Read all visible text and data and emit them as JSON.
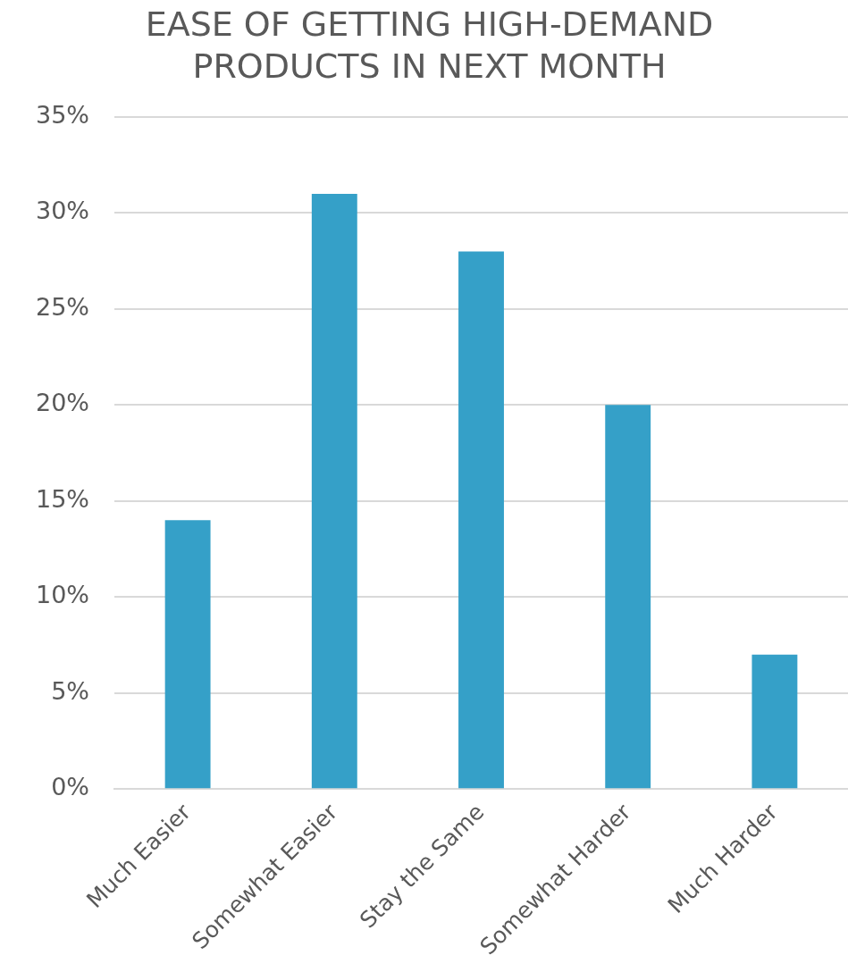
{
  "chart_data": {
    "type": "bar",
    "title": "EASE OF GETTING HIGH-DEMAND PRODUCTS IN NEXT MONTH",
    "categories": [
      "Much Easier",
      "Somewhat Easier",
      "Stay the Same",
      "Somewhat Harder",
      "Much Harder"
    ],
    "values": [
      14,
      31,
      28,
      20,
      7
    ],
    "color": "#35a0c8",
    "ylim": [
      0,
      35
    ],
    "yticks": [
      {
        "value": 0,
        "label": "0%"
      },
      {
        "value": 5,
        "label": "5%"
      },
      {
        "value": 10,
        "label": "10%"
      },
      {
        "value": 15,
        "label": "15%"
      },
      {
        "value": 20,
        "label": "20%"
      },
      {
        "value": 25,
        "label": "25%"
      },
      {
        "value": 30,
        "label": "30%"
      },
      {
        "value": 35,
        "label": "35%"
      }
    ],
    "grid": "y",
    "legend": false
  }
}
